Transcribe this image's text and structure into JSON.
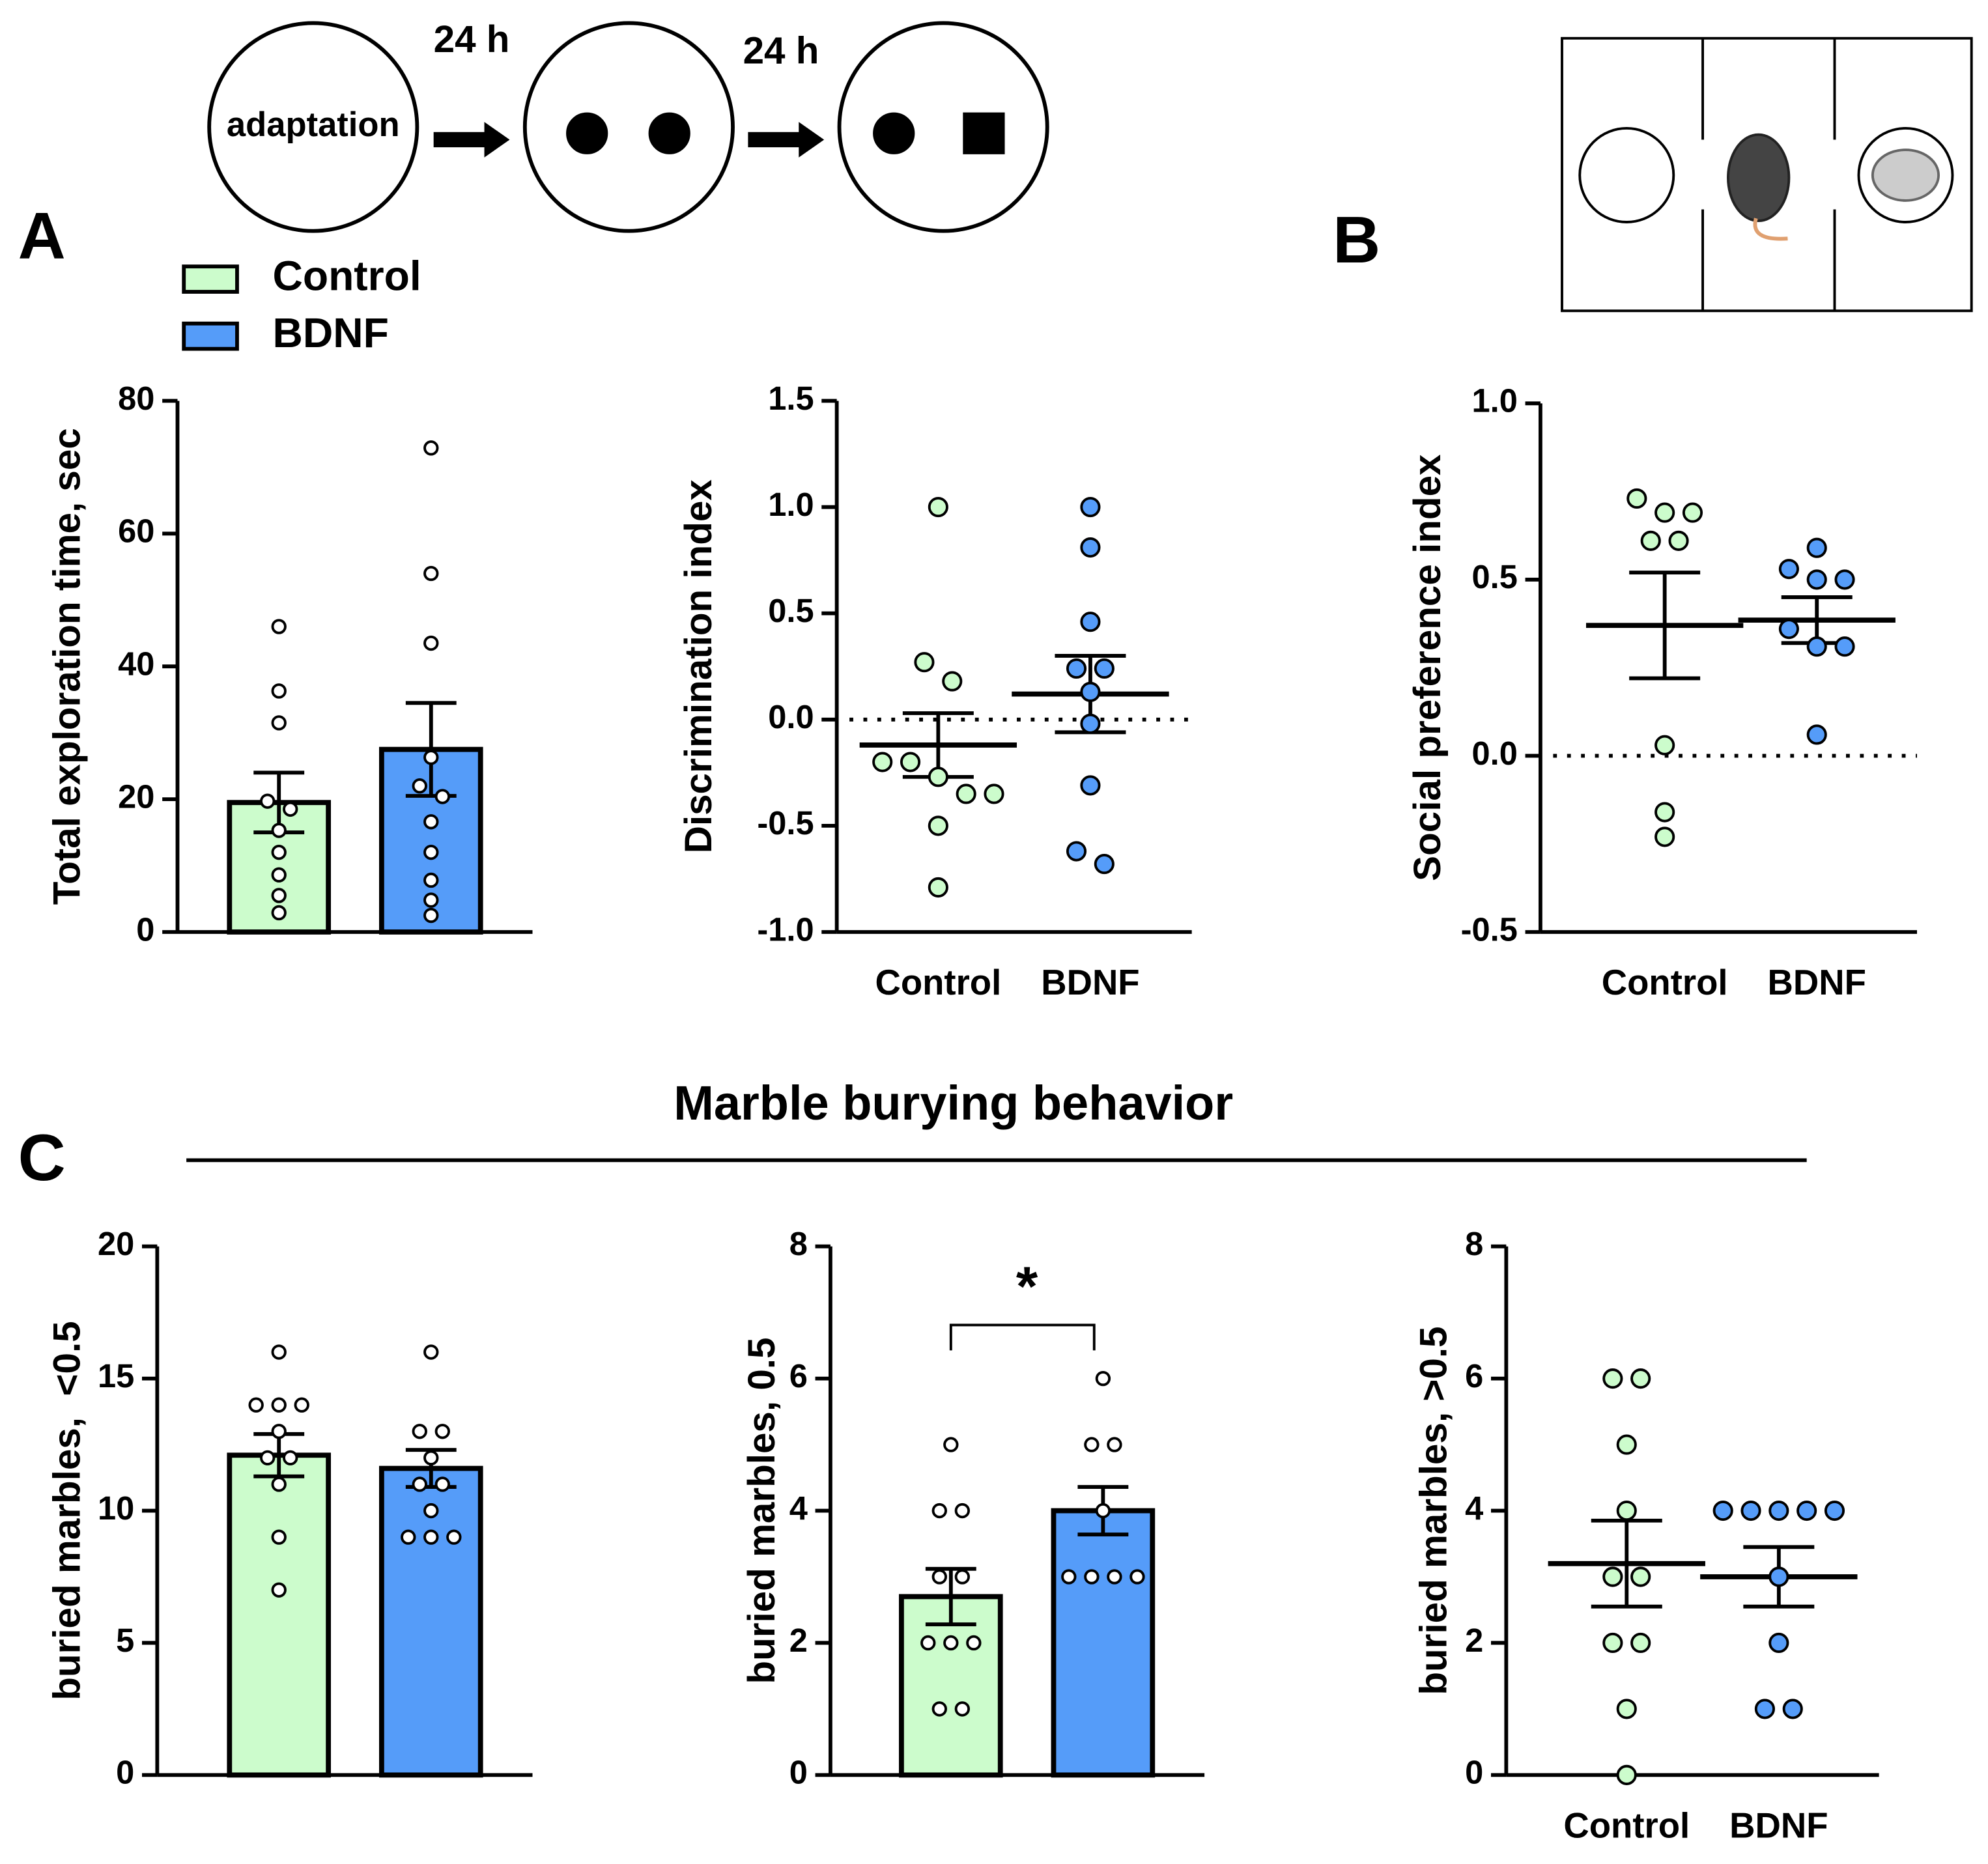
{
  "panels": [
    "A",
    "B",
    "C"
  ],
  "diagram": {
    "adaptation": "adaptation",
    "intervals": [
      "24 h",
      "24 h"
    ]
  },
  "legend": [
    {
      "name": "Control",
      "color": "#ccfccc"
    },
    {
      "name": "BDNF",
      "color": "#559cf9"
    }
  ],
  "section_title": "Marble burying behavior",
  "chart_data": [
    {
      "type": "bar",
      "y_label": "Total exploration time, sec",
      "ylim": [
        0,
        80
      ],
      "yticks": [
        0,
        20,
        40,
        60,
        80
      ],
      "series": [
        {
          "mean": 19.5,
          "error": 4.5,
          "values": [
            46,
            36.3,
            31.5,
            19.7,
            18.5,
            15.3,
            12,
            8.6,
            5.5,
            2.9
          ]
        },
        {
          "mean": 27.5,
          "error": 7,
          "values": [
            72.9,
            54,
            43.5,
            26.3,
            22,
            20.4,
            16.6,
            12,
            7.8,
            4.8,
            2.5
          ]
        }
      ]
    },
    {
      "type": "scatter",
      "y_label": "Discrimination index",
      "categories": [
        "Control",
        "BDNF"
      ],
      "ylim": [
        -1,
        1.5
      ],
      "yticks": [
        {
          "value": -1,
          "label": "-1.0"
        },
        -0.5,
        {
          "value": 0,
          "label": "0.0"
        },
        0.5,
        {
          "value": 1,
          "label": "1.0"
        },
        1.5
      ],
      "hline": 0,
      "series": [
        {
          "mean": -0.12,
          "error": 0.15,
          "values": [
            1.0,
            0.27,
            0.18,
            -0.2,
            -0.2,
            -0.27,
            -0.35,
            -0.35,
            -0.5,
            -0.79
          ]
        },
        {
          "mean": 0.12,
          "error": 0.18,
          "values": [
            1.0,
            0.81,
            0.46,
            0.24,
            0.24,
            0.13,
            -0.02,
            -0.31,
            -0.62,
            -0.68
          ]
        }
      ]
    },
    {
      "type": "scatter",
      "y_label": "Social preference index",
      "categories": [
        "Control",
        "BDNF"
      ],
      "ylim": [
        -0.5,
        1
      ],
      "yticks": [
        -0.5,
        {
          "value": 0,
          "label": "0.0"
        },
        0.5,
        {
          "value": 1,
          "label": "1.0"
        }
      ],
      "hline": 0,
      "series": [
        {
          "mean": 0.37,
          "error": 0.15,
          "values": [
            0.73,
            0.69,
            0.69,
            0.61,
            0.61,
            0.03,
            -0.16,
            -0.23
          ]
        },
        {
          "mean": 0.385,
          "error": 0.065,
          "values": [
            0.59,
            0.53,
            0.5,
            0.5,
            0.36,
            0.31,
            0.31,
            0.06
          ]
        }
      ]
    },
    {
      "type": "bar",
      "y_label": "buried marbles,  <0.5",
      "ylim": [
        0,
        20
      ],
      "yticks": [
        0,
        5,
        10,
        15,
        20
      ],
      "series": [
        {
          "mean": 12.1,
          "error": 0.8,
          "values": [
            16,
            14,
            14,
            14,
            13,
            12,
            12,
            11,
            9,
            7
          ]
        },
        {
          "mean": 11.6,
          "error": 0.7,
          "values": [
            16,
            13,
            13,
            12,
            11,
            11,
            10,
            9,
            9,
            9
          ]
        }
      ]
    },
    {
      "type": "bar",
      "y_label": "buried marbles, 0.5",
      "ylim": [
        0,
        8
      ],
      "yticks": [
        0,
        2,
        4,
        6,
        8
      ],
      "annotation": "*",
      "series": [
        {
          "mean": 2.7,
          "error": 0.42,
          "values": [
            5,
            4,
            4,
            3,
            3,
            2,
            2,
            2,
            1,
            1
          ]
        },
        {
          "mean": 4.0,
          "error": 0.36,
          "values": [
            6,
            5,
            5,
            4,
            3,
            3,
            3,
            3
          ]
        }
      ]
    },
    {
      "type": "scatter",
      "y_label": "buried marbles, >0.5",
      "categories": [
        "Control",
        "BDNF"
      ],
      "ylim": [
        0,
        8
      ],
      "yticks": [
        0,
        2,
        4,
        6,
        8
      ],
      "series": [
        {
          "mean": 3.2,
          "error": 0.65,
          "values": [
            6,
            6,
            5,
            4,
            3,
            3,
            2,
            2,
            1,
            0
          ]
        },
        {
          "mean": 3.0,
          "error": 0.45,
          "values": [
            4,
            4,
            4,
            4,
            4,
            3,
            2,
            1,
            1
          ]
        }
      ]
    }
  ]
}
